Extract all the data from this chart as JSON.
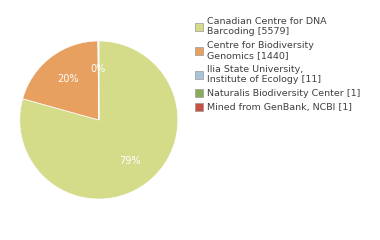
{
  "labels": [
    "Canadian Centre for DNA\nBarcoding [5579]",
    "Centre for Biodiversity\nGenomics [1440]",
    "Ilia State University,\nInstitute of Ecology [11]",
    "Naturalis Biodiversity Center [1]",
    "Mined from GenBank, NCBI [1]"
  ],
  "values": [
    5579,
    1440,
    11,
    1,
    1
  ],
  "colors": [
    "#d4dc8a",
    "#e8a060",
    "#a8c4d8",
    "#8aac5a",
    "#c85040"
  ],
  "background_color": "#ffffff",
  "text_color": "#404040",
  "fontsize": 7.0,
  "legend_fontsize": 6.8
}
